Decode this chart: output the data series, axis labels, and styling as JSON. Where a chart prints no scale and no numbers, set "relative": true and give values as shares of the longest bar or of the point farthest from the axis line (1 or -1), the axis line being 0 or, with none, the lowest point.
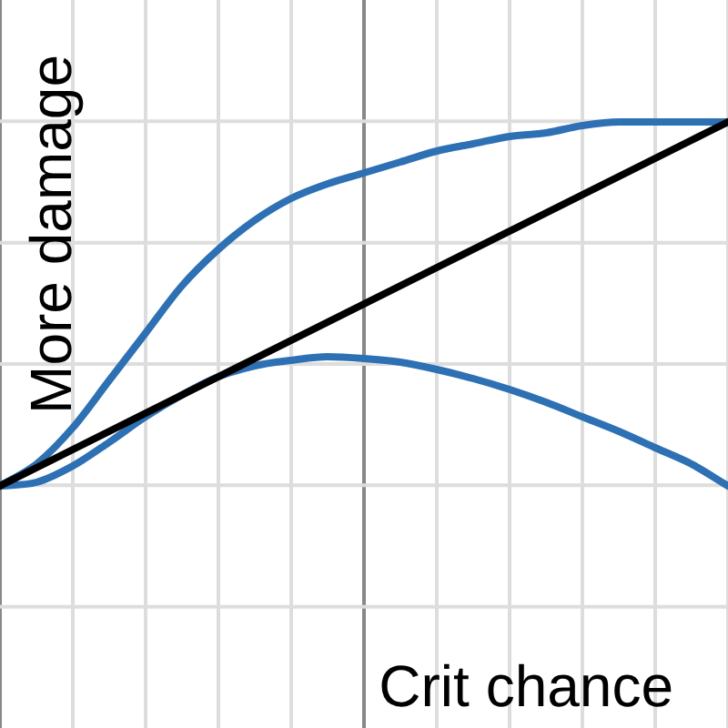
{
  "chart_data": {
    "type": "line",
    "xlabel": "Crit chance",
    "ylabel": "More damage",
    "relative": true,
    "grid": true,
    "legend": false,
    "marker": "none",
    "categories": [
      null,
      null,
      null,
      null,
      null,
      null,
      null,
      null,
      null,
      null,
      null,
      null,
      null,
      null,
      null,
      null,
      null,
      null,
      null,
      null,
      null
    ],
    "series": [
      {
        "color": "#000000",
        "values": [
          0,
          0.05,
          0.1,
          0.15,
          0.2,
          0.25,
          0.3,
          0.35,
          0.4,
          0.45,
          0.5,
          0.55,
          0.6,
          0.65,
          0.7,
          0.75,
          0.8,
          0.85,
          0.9,
          0.95,
          1
        ]
      },
      {
        "color": "#2d70b3",
        "values": [
          0,
          0.06,
          0.16,
          0.29,
          0.42,
          0.55,
          0.65,
          0.73,
          0.79,
          0.83,
          0.86,
          0.89,
          0.92,
          0.94,
          0.96,
          0.97,
          0.99,
          1,
          1,
          1,
          1
        ]
      },
      {
        "color": "#2d70b3",
        "values": [
          0,
          0.01,
          0.055,
          0.12,
          0.19,
          0.25,
          0.3,
          0.33,
          0.345,
          0.355,
          0.35,
          0.34,
          0.32,
          0.295,
          0.265,
          0.23,
          0.19,
          0.15,
          0.105,
          0.06,
          0
        ]
      }
    ]
  }
}
